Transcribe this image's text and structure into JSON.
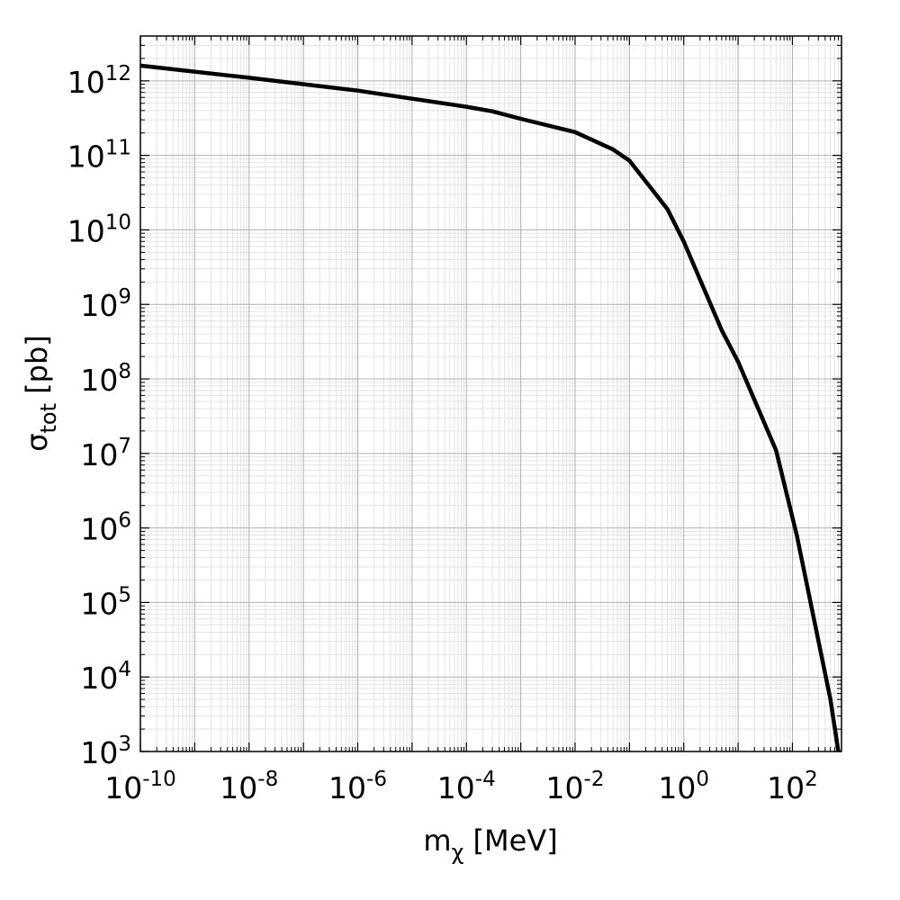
{
  "chart_data": {
    "type": "line",
    "xlabel": {
      "main": "m",
      "sub": "χ",
      "rest": " [MeV]"
    },
    "ylabel": {
      "main": "σ",
      "sub": "tot",
      "rest": " [pb]"
    },
    "x_scale": "log",
    "y_scale": "log",
    "xlim": [
      1e-10,
      800
    ],
    "ylim": [
      1000,
      4000000000000.0
    ],
    "grid": true,
    "x_ticks": [
      {
        "base": "10",
        "exp": "-10",
        "value": 1e-10
      },
      {
        "base": "10",
        "exp": "-8",
        "value": 1e-08
      },
      {
        "base": "10",
        "exp": "-6",
        "value": 1e-06
      },
      {
        "base": "10",
        "exp": "-4",
        "value": 0.0001
      },
      {
        "base": "10",
        "exp": "-2",
        "value": 0.01
      },
      {
        "base": "10",
        "exp": "0",
        "value": 1
      },
      {
        "base": "10",
        "exp": "2",
        "value": 100
      }
    ],
    "y_ticks": [
      {
        "base": "10",
        "exp": "3",
        "value": 1000.0
      },
      {
        "base": "10",
        "exp": "4",
        "value": 10000.0
      },
      {
        "base": "10",
        "exp": "5",
        "value": 100000.0
      },
      {
        "base": "10",
        "exp": "6",
        "value": 1000000.0
      },
      {
        "base": "10",
        "exp": "7",
        "value": 10000000.0
      },
      {
        "base": "10",
        "exp": "8",
        "value": 100000000.0
      },
      {
        "base": "10",
        "exp": "9",
        "value": 1000000000.0
      },
      {
        "base": "10",
        "exp": "10",
        "value": 10000000000.0
      },
      {
        "base": "10",
        "exp": "11",
        "value": 100000000000.0
      },
      {
        "base": "10",
        "exp": "12",
        "value": 1000000000000.0
      }
    ],
    "series": [
      {
        "color": "#000000",
        "points": [
          [
            1e-10,
            1600000000000.0
          ],
          [
            1e-08,
            1100000000000.0
          ],
          [
            1e-06,
            740000000000.0
          ],
          [
            0.0001,
            450000000000.0
          ],
          [
            0.0003,
            390000000000.0
          ],
          [
            0.001,
            310000000000.0
          ],
          [
            0.01,
            205000000000.0
          ],
          [
            0.05,
            120000000000.0
          ],
          [
            0.1,
            85000000000.0
          ],
          [
            0.5,
            19000000000.0
          ],
          [
            1,
            7000000000.0
          ],
          [
            5,
            450000000.0
          ],
          [
            10,
            170000000.0
          ],
          [
            50,
            11000000.0
          ],
          [
            120,
            800000.0
          ],
          [
            500,
            5000.0
          ],
          [
            700,
            1000.0
          ]
        ]
      }
    ]
  }
}
